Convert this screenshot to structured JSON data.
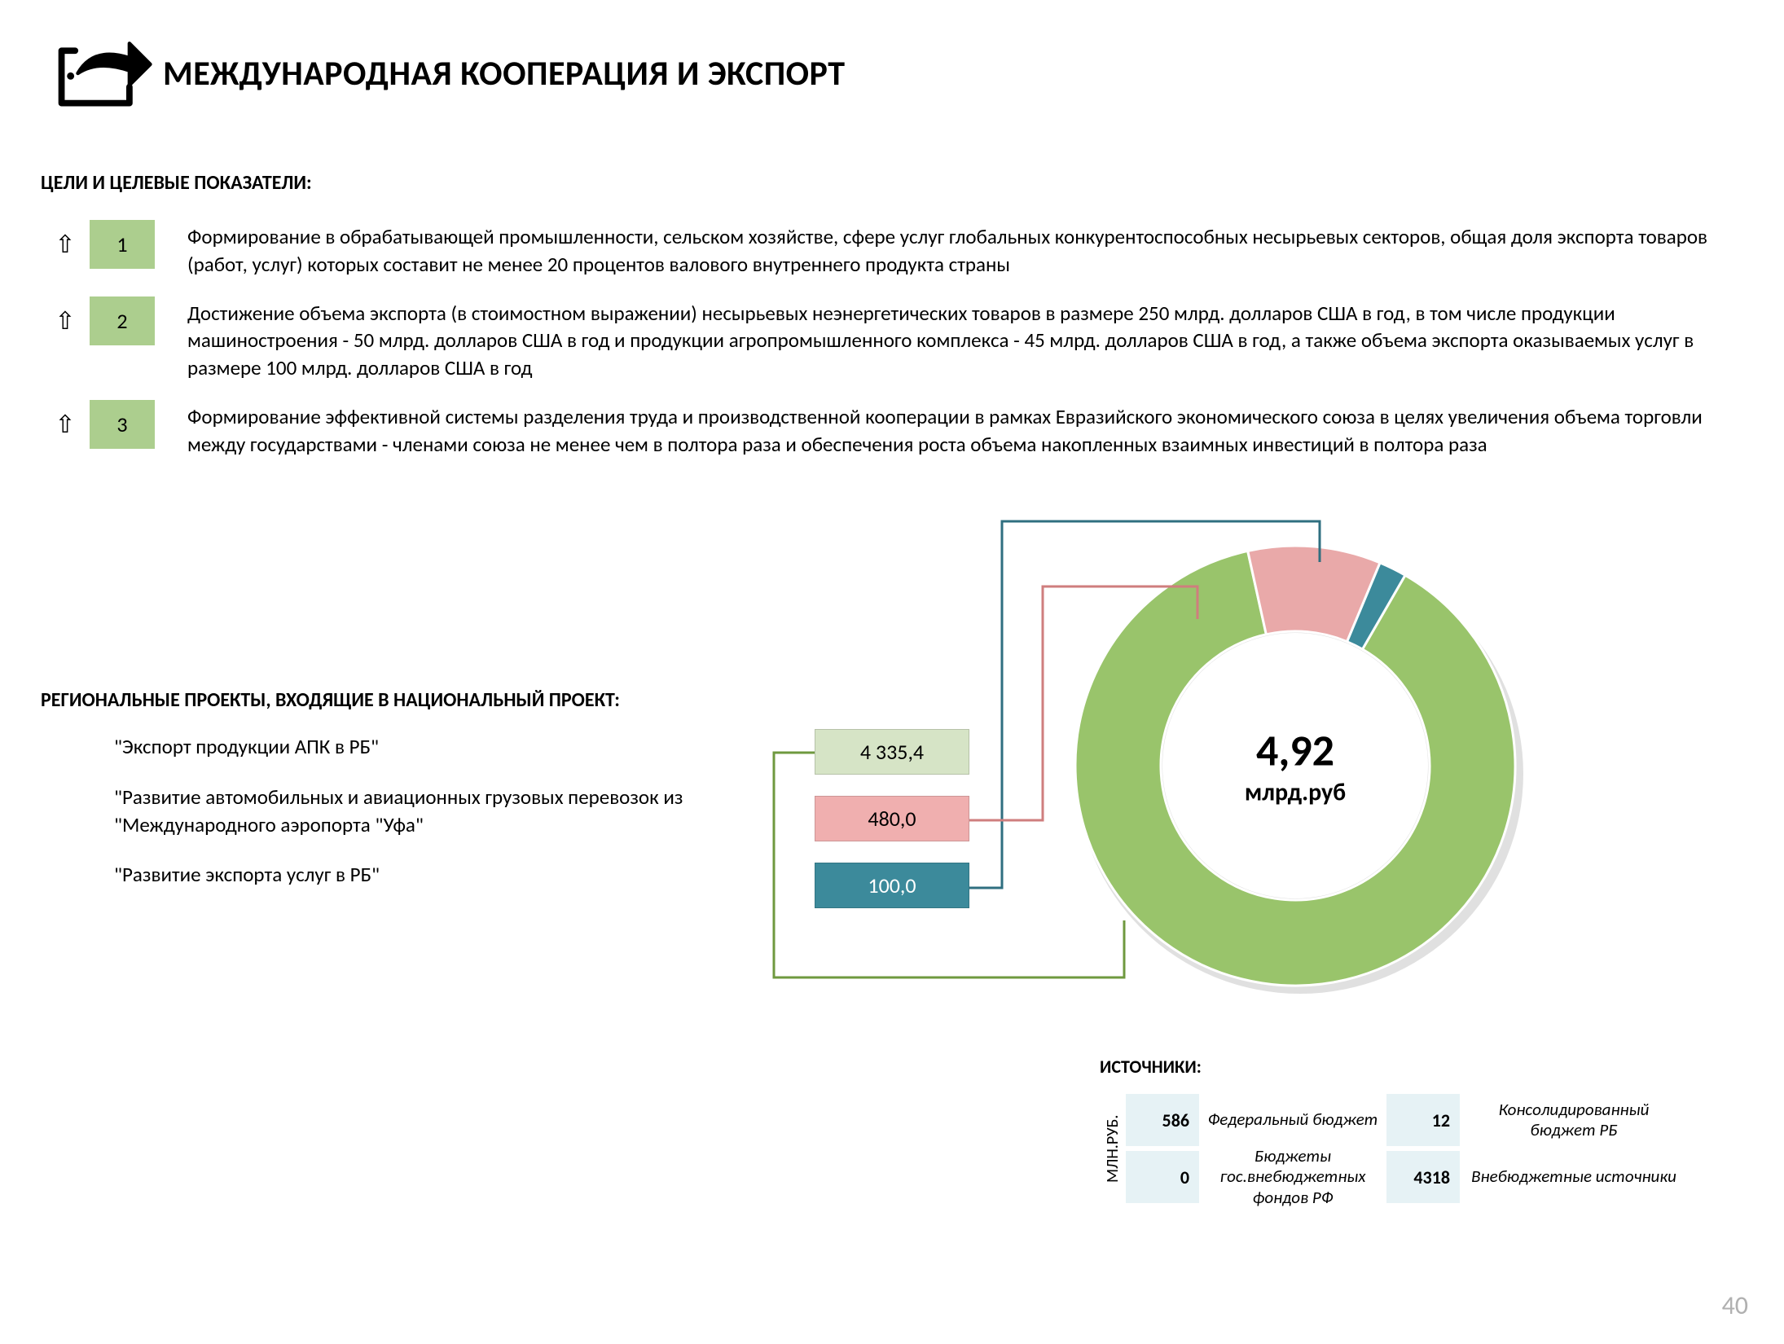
{
  "page_title": "МЕЖДУНАРОДНАЯ КООПЕРАЦИЯ И ЭКСПОРТ",
  "goals_label": "ЦЕЛИ И ЦЕЛЕВЫЕ ПОКАЗАТЕЛИ:",
  "goal_box_color": "#acce8e",
  "goals": [
    {
      "num": "1",
      "text": "Формирование в обрабатывающей промышленности, сельском хозяйстве, сфере услуг глобальных конкурентоспособных несырьевых секторов, общая доля экспорта товаров (работ, услуг) которых составит не менее 20 процентов валового внутреннего продукта страны"
    },
    {
      "num": "2",
      "text": "Достижение объема экспорта (в стоимостном выражении) несырьевых неэнергетических товаров в размере 250 млрд. долларов США в год, в том числе продукции машиностроения - 50 млрд. долларов США в год и продукции агропромышленного комплекса - 45 млрд. долларов США в год, а также объема экспорта оказываемых услуг в размере 100 млрд. долларов США в год"
    },
    {
      "num": "3",
      "text": "Формирование эффективной системы разделения труда и производственной кооперации в рамках Евразийского экономического союза в целях увеличения объема торговли между государствами - членами союза не менее чем в полтора раза и обеспечения роста объема накопленных взаимных инвестиций в полтора раза"
    }
  ],
  "projects_label": "РЕГИОНАЛЬНЫЕ ПРОЕКТЫ, ВХОДЯЩИЕ В НАЦИОНАЛЬНЫЙ ПРОЕКТ:",
  "projects": [
    "\"Экспорт продукции АПК в РБ\"",
    "\"Развитие автомобильных и авиационных грузовых перевозок из \"Международного аэропорта \"Уфа\"",
    "\"Развитие экспорта услуг в РБ\""
  ],
  "value_boxes": [
    {
      "label": "4 335,4",
      "bg": "#d6e4c6",
      "color": "#000000"
    },
    {
      "label": "480,0",
      "bg": "#f0afaf",
      "color": "#000000"
    },
    {
      "label": "100,0",
      "bg": "#3c8a9b",
      "color": "#ffffff"
    }
  ],
  "donut": {
    "type": "donut",
    "center_value": "4,92",
    "center_unit": "млрд.руб",
    "outer_radius": 270,
    "inner_radius": 165,
    "bg": "#ffffff",
    "start_angle_deg": -60,
    "slices": [
      {
        "value": 4335.4,
        "color": "#99c46b",
        "stroke": "#ffffff"
      },
      {
        "value": 480.0,
        "color": "#e9a9a9",
        "stroke": "#ffffff"
      },
      {
        "value": 100.0,
        "color": "#3c8a9b",
        "stroke": "#ffffff"
      }
    ],
    "connector_colors": {
      "green": "#6f993f",
      "pink": "#cf7e7e",
      "teal": "#2f6f80"
    }
  },
  "sources_label": "ИСТОЧНИКИ:",
  "sources_ylabel": "МЛН.РУБ.",
  "sources_cell_bg": "#e6f2f5",
  "sources": [
    {
      "value": "586",
      "name": "Федеральный бюджет"
    },
    {
      "value": "12",
      "name": "Консолидированный бюджет РБ"
    },
    {
      "value": "0",
      "name": "Бюджеты гос.внебюджетных фондов РФ"
    },
    {
      "value": "4318",
      "name": "Внебюджетные источники"
    }
  ],
  "page_number": "40"
}
